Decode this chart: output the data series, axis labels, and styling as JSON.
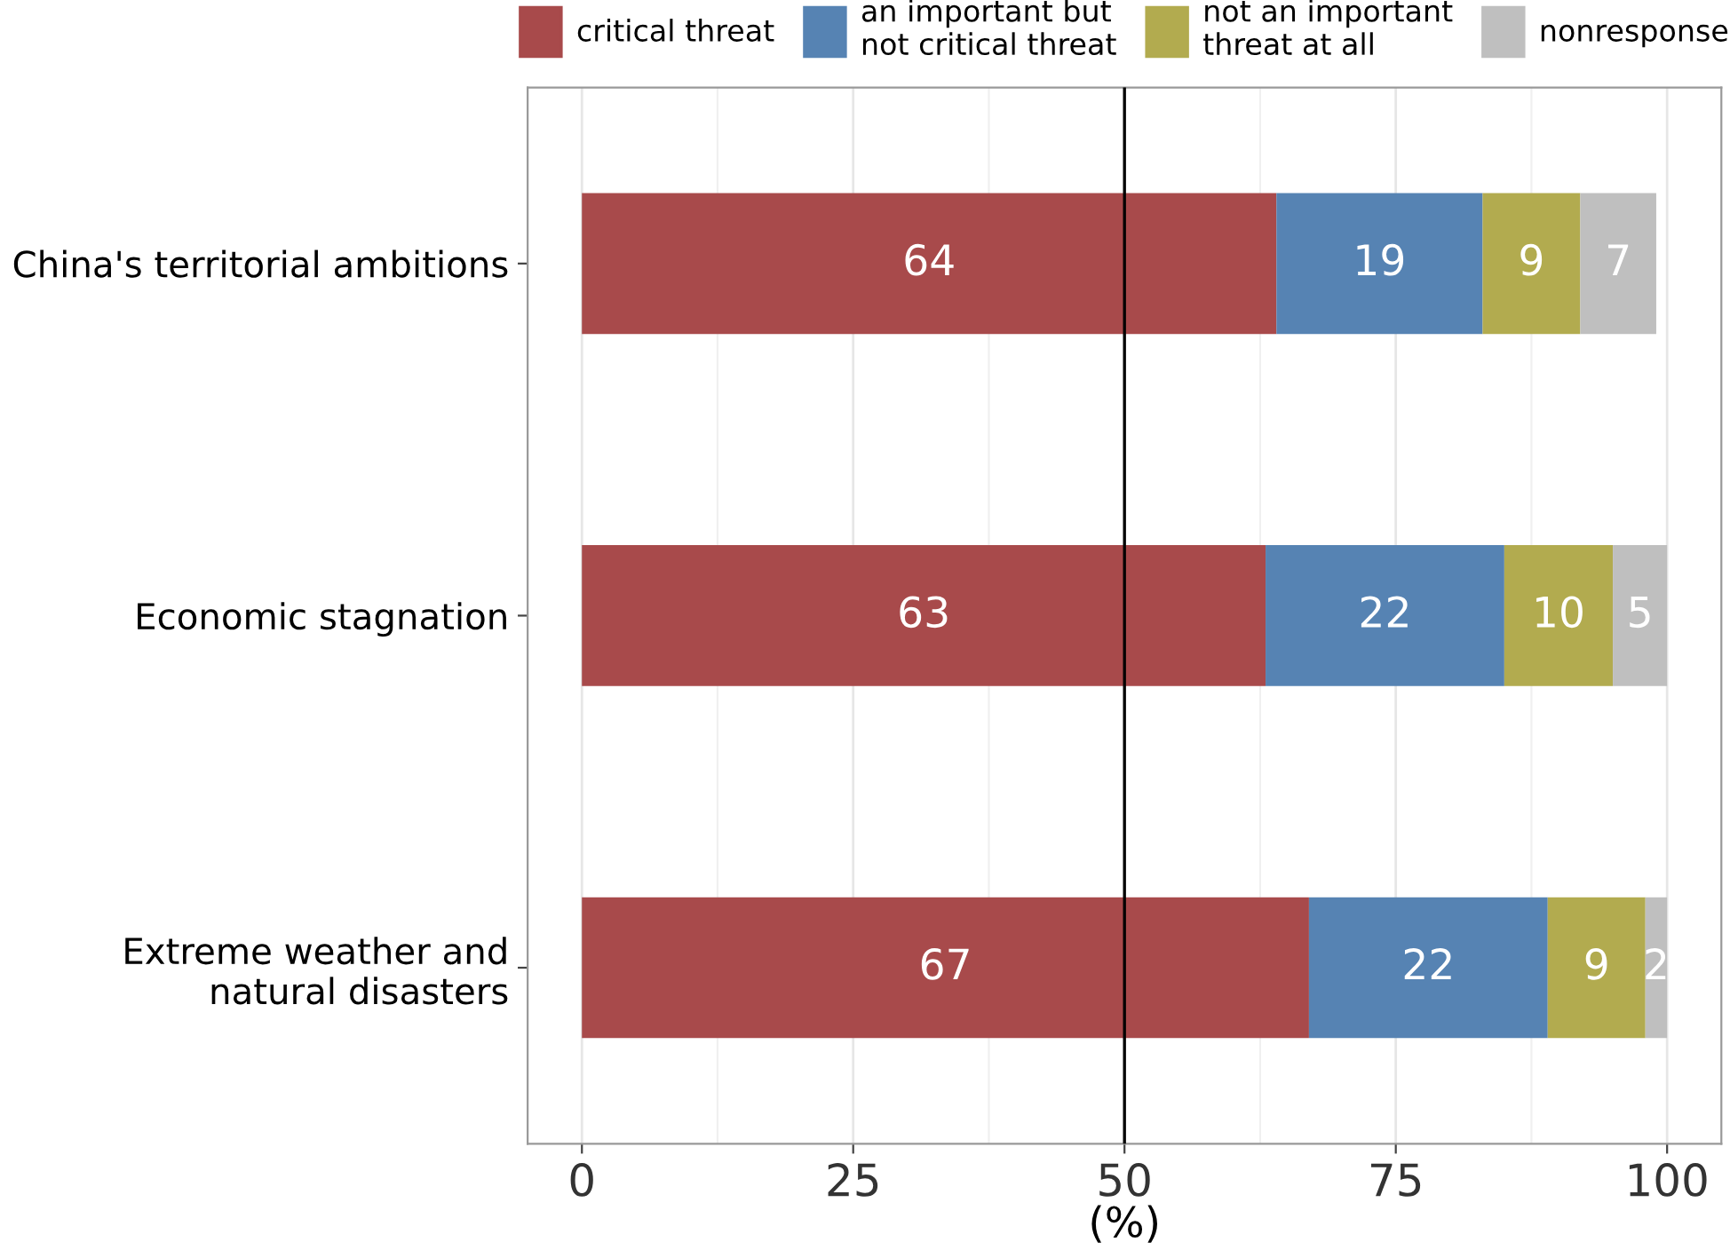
{
  "chart_data": {
    "type": "bar",
    "orientation": "horizontal",
    "stacked": true,
    "xlabel": "(%)",
    "categories": [
      "China's territorial ambitions",
      "Economic stagnation",
      "Extreme weather and\nnatural disasters"
    ],
    "series": [
      {
        "name": "critical threat",
        "color": "#a84a4b",
        "values": [
          64,
          63,
          67
        ]
      },
      {
        "name": "an important but\nnot critical threat",
        "color": "#5683b3",
        "values": [
          19,
          22,
          22
        ]
      },
      {
        "name": "not an important\nthreat at all",
        "color": "#b2ab4f",
        "values": [
          9,
          10,
          9
        ]
      },
      {
        "name": "nonresponse",
        "color": "#bfbfbf",
        "values": [
          7,
          5,
          2
        ]
      }
    ],
    "xlim": [
      -5,
      105
    ],
    "xticks": [
      0,
      25,
      50,
      75,
      100
    ],
    "grid": "x",
    "legend": "top",
    "data_labels": true,
    "ref_lines": [
      {
        "axis": "x",
        "value": 50,
        "color": "#000000"
      }
    ]
  }
}
